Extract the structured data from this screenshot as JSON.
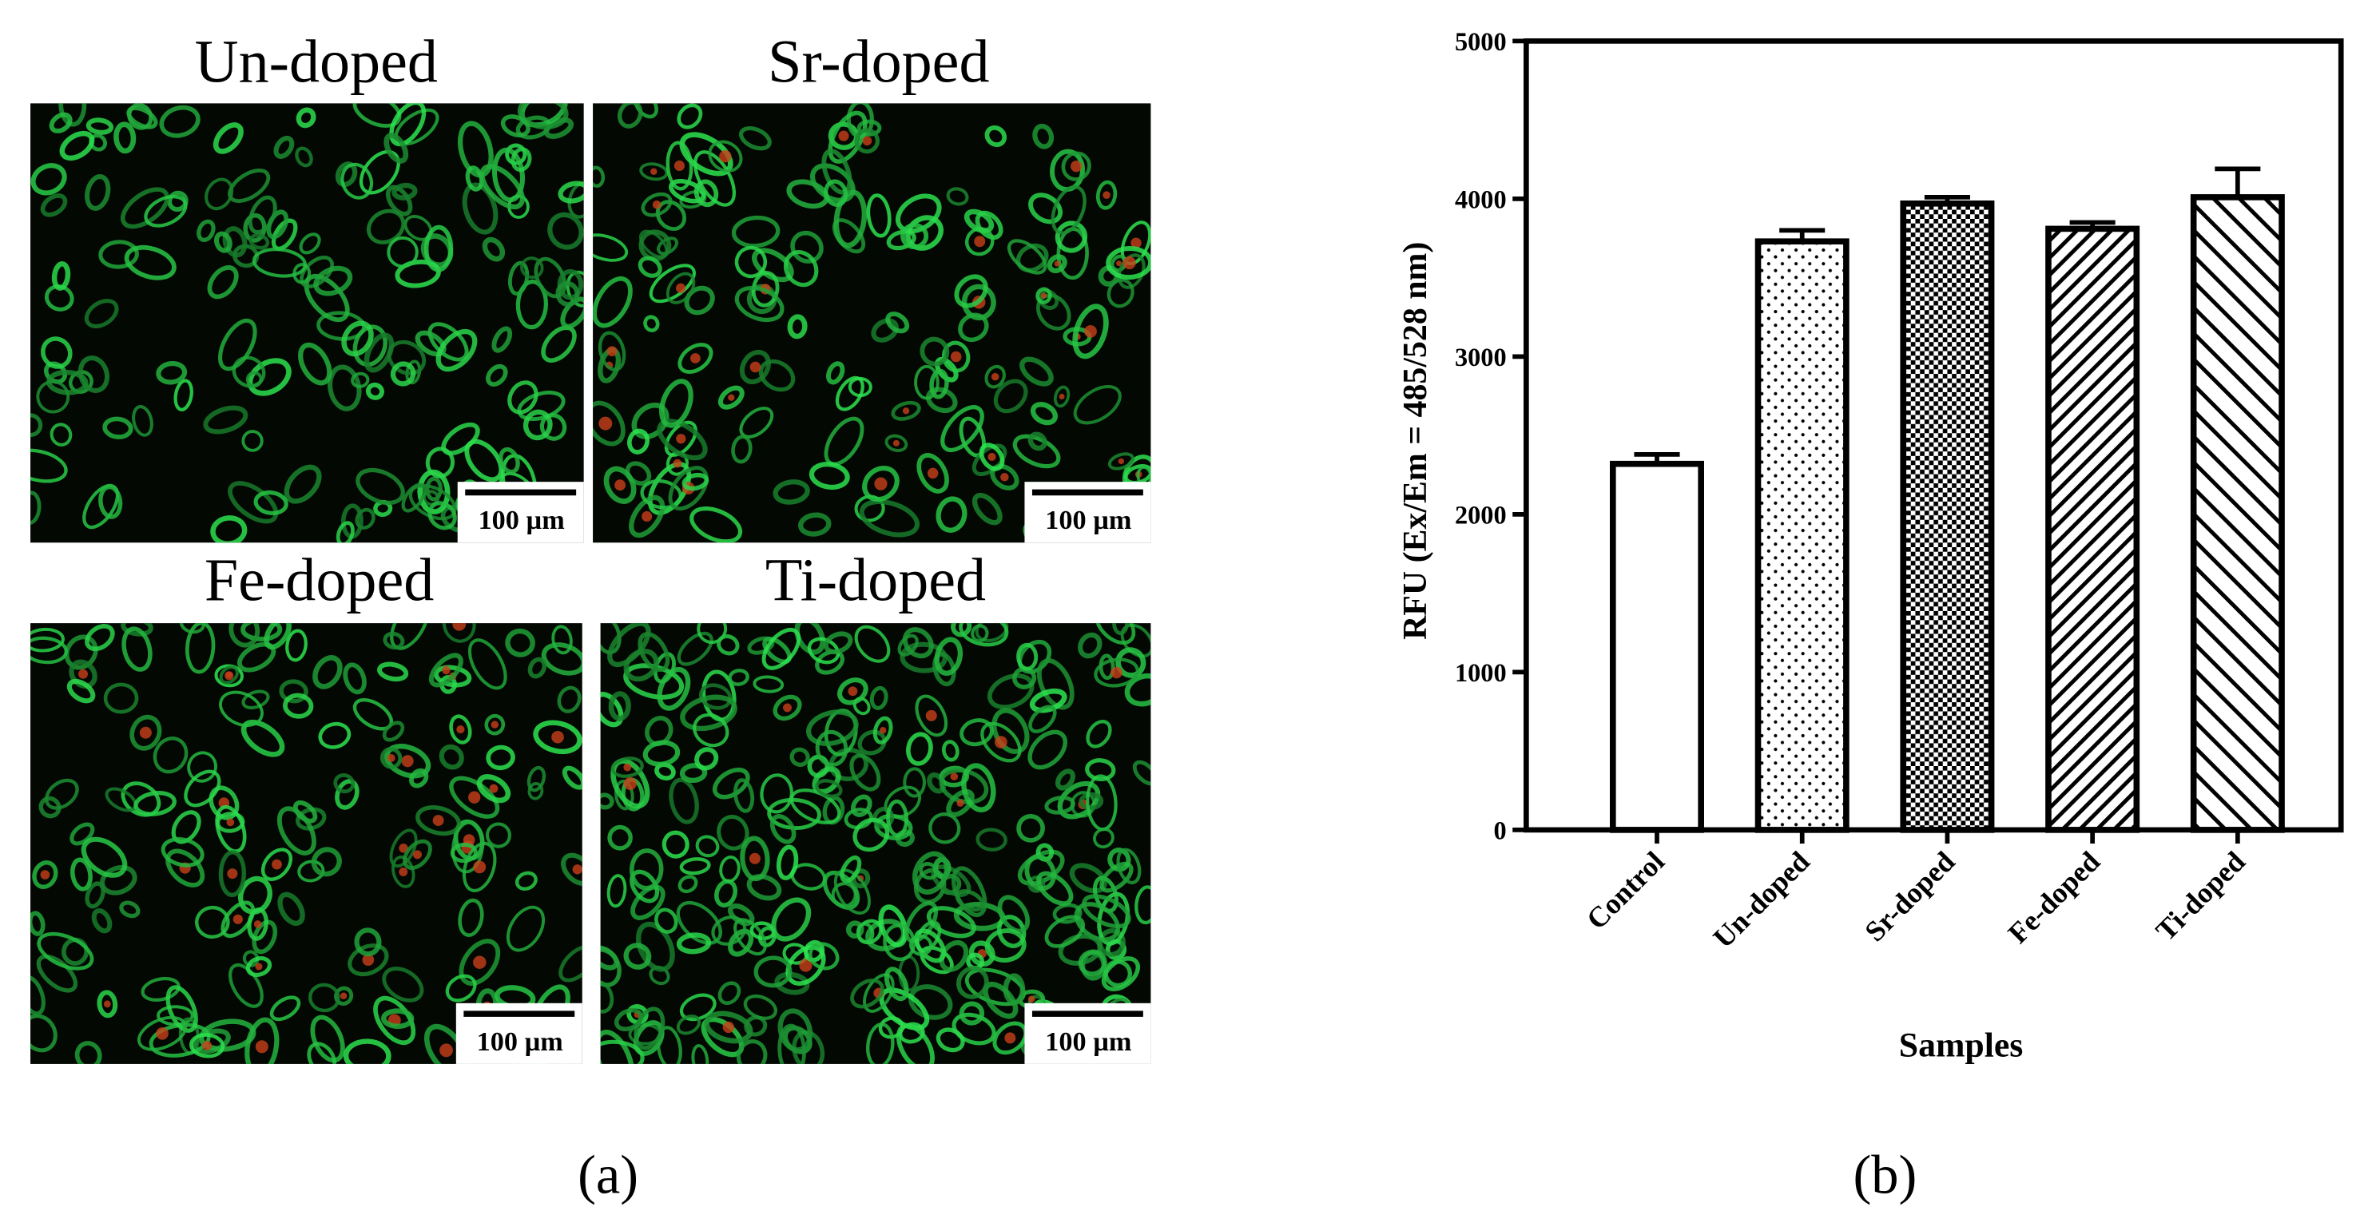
{
  "panel_a": {
    "images": [
      {
        "title": "Un-doped",
        "scale_bar": "100 µm"
      },
      {
        "title": "Sr-doped",
        "scale_bar": "100 µm"
      },
      {
        "title": "Fe-doped",
        "scale_bar": "100 µm"
      },
      {
        "title": "Ti-doped",
        "scale_bar": "100 µm"
      }
    ],
    "label": "(a)"
  },
  "chart_data": {
    "type": "bar",
    "categories": [
      "Control",
      "Un-doped",
      "Sr-doped",
      "Fe-doped",
      "Ti-doped"
    ],
    "values": [
      2320,
      3730,
      3970,
      3810,
      4010
    ],
    "errors": [
      60,
      70,
      40,
      40,
      180
    ],
    "color": "#000000",
    "ylabel": "RFU (Ex/Em = 485/528 nm)",
    "xlabel": "Samples",
    "ylim": [
      0,
      5000
    ],
    "yticks": [
      0,
      1000,
      2000,
      3000,
      4000,
      5000
    ],
    "label": "(b)"
  }
}
